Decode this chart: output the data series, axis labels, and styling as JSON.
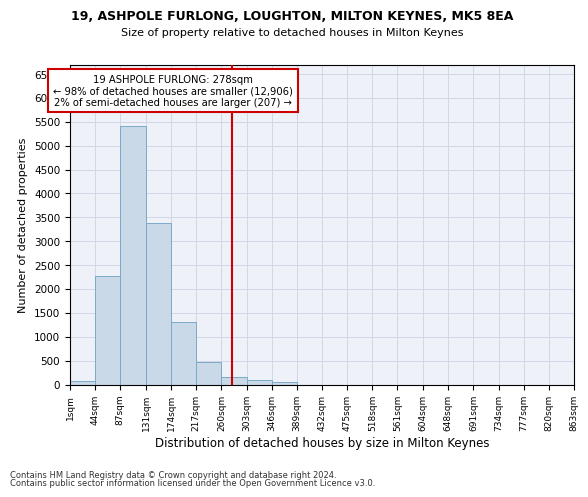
{
  "title1": "19, ASHPOLE FURLONG, LOUGHTON, MILTON KEYNES, MK5 8EA",
  "title2": "Size of property relative to detached houses in Milton Keynes",
  "xlabel": "Distribution of detached houses by size in Milton Keynes",
  "ylabel": "Number of detached properties",
  "bin_edges": [
    1,
    44,
    87,
    131,
    174,
    217,
    260,
    303,
    346,
    389,
    432,
    475,
    518,
    561,
    604,
    648,
    691,
    734,
    777,
    820,
    863
  ],
  "bin_labels": [
    "1sqm",
    "44sqm",
    "87sqm",
    "131sqm",
    "174sqm",
    "217sqm",
    "260sqm",
    "303sqm",
    "346sqm",
    "389sqm",
    "432sqm",
    "475sqm",
    "518sqm",
    "561sqm",
    "604sqm",
    "648sqm",
    "691sqm",
    "734sqm",
    "777sqm",
    "820sqm",
    "863sqm"
  ],
  "counts": [
    70,
    2280,
    5420,
    3380,
    1310,
    480,
    160,
    90,
    50,
    0,
    0,
    0,
    0,
    0,
    0,
    0,
    0,
    0,
    0,
    0
  ],
  "bar_facecolor": "#c9d9e8",
  "bar_edgecolor": "#7aaac8",
  "grid_color": "#d0d8e8",
  "bg_color": "#eef2f8",
  "vline_x": 278,
  "vline_color": "#cc0000",
  "annotation_text": "19 ASHPOLE FURLONG: 278sqm\n← 98% of detached houses are smaller (12,906)\n2% of semi-detached houses are larger (207) →",
  "annotation_box_color": "#ffffff",
  "annotation_box_edgecolor": "#cc0000",
  "ylim": [
    0,
    6700
  ],
  "yticks": [
    0,
    500,
    1000,
    1500,
    2000,
    2500,
    3000,
    3500,
    4000,
    4500,
    5000,
    5500,
    6000,
    6500
  ],
  "footnote1": "Contains HM Land Registry data © Crown copyright and database right 2024.",
  "footnote2": "Contains public sector information licensed under the Open Government Licence v3.0."
}
